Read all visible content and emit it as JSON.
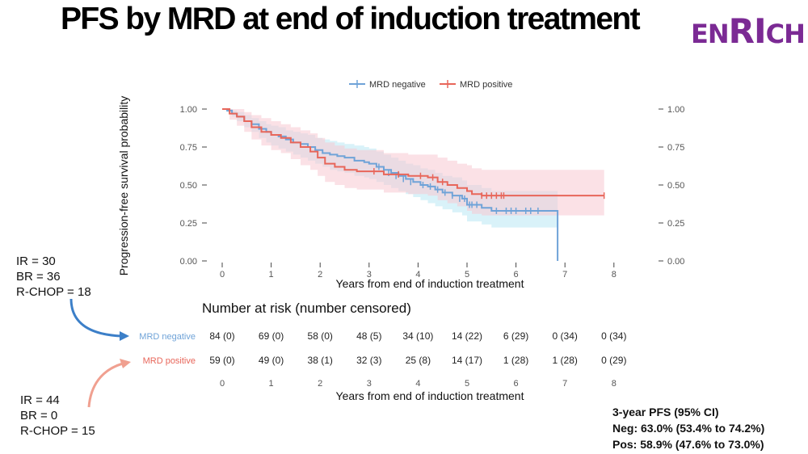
{
  "title": "PFS by MRD at end of induction treatment",
  "logo": {
    "prefix": "EN",
    "highlight": "RI",
    "suffix": "CH"
  },
  "colors": {
    "negative": "#6fa3d8",
    "positive": "#e8665a",
    "neg_band": "#c9ecf7",
    "pos_band": "#f7c9d2",
    "logo": "#7b2a94"
  },
  "chart_data": {
    "type": "line",
    "subtype": "kaplan-meier",
    "title": "",
    "xlabel": "Years from end of induction treatment",
    "ylabel": "Progression-free survival probability",
    "xlim": [
      0,
      8
    ],
    "ylim": [
      0,
      1
    ],
    "x_ticks": [
      "0",
      "1",
      "2",
      "3",
      "4",
      "5",
      "6",
      "7",
      "8"
    ],
    "y_ticks": [
      "0.00",
      "0.25",
      "0.50",
      "0.75",
      "1.00"
    ],
    "y_tick_values": [
      0,
      0.25,
      0.5,
      0.75,
      1.0
    ],
    "legend": [
      "MRD negative",
      "MRD positive"
    ],
    "legend_position": "top",
    "series": [
      {
        "name": "MRD negative",
        "x": [
          0,
          0.1,
          0.2,
          0.3,
          0.45,
          0.6,
          0.75,
          0.9,
          1.0,
          1.15,
          1.3,
          1.45,
          1.6,
          1.75,
          1.9,
          2.05,
          2.2,
          2.35,
          2.5,
          2.7,
          2.9,
          3.0,
          3.15,
          3.3,
          3.45,
          3.6,
          3.75,
          3.9,
          4.05,
          4.2,
          4.35,
          4.5,
          4.7,
          4.9,
          5.0,
          5.15,
          5.3,
          5.5,
          6.0,
          6.5,
          6.85,
          6.85
        ],
        "y": [
          1.0,
          0.99,
          0.97,
          0.95,
          0.92,
          0.9,
          0.87,
          0.85,
          0.83,
          0.82,
          0.8,
          0.78,
          0.77,
          0.75,
          0.73,
          0.71,
          0.7,
          0.69,
          0.68,
          0.66,
          0.65,
          0.64,
          0.62,
          0.6,
          0.58,
          0.56,
          0.54,
          0.52,
          0.5,
          0.49,
          0.47,
          0.45,
          0.43,
          0.41,
          0.37,
          0.37,
          0.35,
          0.33,
          0.33,
          0.33,
          0.33,
          0.0
        ],
        "ci_lower": [
          1.0,
          0.98,
          0.95,
          0.92,
          0.88,
          0.85,
          0.81,
          0.78,
          0.76,
          0.74,
          0.72,
          0.7,
          0.68,
          0.66,
          0.64,
          0.62,
          0.6,
          0.59,
          0.58,
          0.56,
          0.55,
          0.54,
          0.52,
          0.5,
          0.48,
          0.46,
          0.44,
          0.42,
          0.4,
          0.38,
          0.36,
          0.34,
          0.32,
          0.3,
          0.26,
          0.26,
          0.24,
          0.22,
          0.22,
          0.22,
          0.22,
          0.22
        ],
        "ci_upper": [
          1.0,
          1.0,
          0.99,
          0.98,
          0.96,
          0.94,
          0.92,
          0.9,
          0.89,
          0.88,
          0.86,
          0.85,
          0.84,
          0.83,
          0.81,
          0.8,
          0.79,
          0.78,
          0.77,
          0.76,
          0.75,
          0.74,
          0.72,
          0.7,
          0.68,
          0.66,
          0.64,
          0.63,
          0.61,
          0.6,
          0.58,
          0.56,
          0.55,
          0.53,
          0.5,
          0.5,
          0.48,
          0.46,
          0.46,
          0.46,
          0.46,
          0.46
        ],
        "censor_x": [
          3.2,
          3.4,
          3.55,
          3.7,
          3.85,
          4.1,
          4.25,
          4.4,
          4.55,
          4.7,
          4.85,
          4.95,
          5.05,
          5.1,
          5.2,
          5.6,
          5.8,
          5.9,
          6.0,
          6.2,
          6.3,
          6.45
        ],
        "censor_y": [
          0.62,
          0.58,
          0.56,
          0.54,
          0.52,
          0.5,
          0.49,
          0.47,
          0.45,
          0.43,
          0.41,
          0.41,
          0.37,
          0.37,
          0.37,
          0.33,
          0.33,
          0.33,
          0.33,
          0.33,
          0.33,
          0.33
        ]
      },
      {
        "name": "MRD positive",
        "x": [
          0,
          0.15,
          0.3,
          0.45,
          0.6,
          0.8,
          1.0,
          1.2,
          1.4,
          1.6,
          1.8,
          1.95,
          2.1,
          2.3,
          2.5,
          2.75,
          3.0,
          3.3,
          3.5,
          3.8,
          4.0,
          4.2,
          4.4,
          4.6,
          4.8,
          5.0,
          5.1,
          5.3,
          6.0,
          7.0,
          7.8
        ],
        "y": [
          1.0,
          0.97,
          0.95,
          0.92,
          0.88,
          0.85,
          0.83,
          0.81,
          0.78,
          0.75,
          0.72,
          0.68,
          0.64,
          0.62,
          0.6,
          0.59,
          0.59,
          0.57,
          0.57,
          0.56,
          0.56,
          0.55,
          0.52,
          0.5,
          0.48,
          0.46,
          0.44,
          0.43,
          0.43,
          0.43,
          0.43
        ],
        "ci_lower": [
          1.0,
          0.93,
          0.89,
          0.85,
          0.8,
          0.76,
          0.73,
          0.71,
          0.67,
          0.63,
          0.6,
          0.56,
          0.52,
          0.5,
          0.48,
          0.47,
          0.47,
          0.45,
          0.45,
          0.44,
          0.44,
          0.43,
          0.4,
          0.38,
          0.36,
          0.33,
          0.31,
          0.3,
          0.3,
          0.3,
          0.3
        ],
        "ci_upper": [
          1.0,
          1.0,
          1.0,
          0.98,
          0.96,
          0.94,
          0.92,
          0.9,
          0.88,
          0.86,
          0.84,
          0.81,
          0.78,
          0.76,
          0.74,
          0.73,
          0.73,
          0.71,
          0.71,
          0.7,
          0.7,
          0.7,
          0.68,
          0.66,
          0.64,
          0.63,
          0.61,
          0.6,
          0.6,
          0.6,
          0.6
        ],
        "censor_x": [
          3.1,
          3.6,
          4.05,
          4.3,
          4.5,
          5.3,
          5.4,
          5.5,
          5.6,
          5.7,
          5.75,
          7.8
        ],
        "censor_y": [
          0.59,
          0.57,
          0.56,
          0.55,
          0.52,
          0.43,
          0.43,
          0.43,
          0.43,
          0.43,
          0.43,
          0.43
        ]
      }
    ]
  },
  "risk_table": {
    "title": "Number at risk (number censored)",
    "xlabel": "Years from end of induction treatment",
    "x_ticks": [
      "0",
      "1",
      "2",
      "3",
      "4",
      "5",
      "6",
      "7",
      "8"
    ],
    "rows": [
      {
        "label": "MRD negative",
        "values": [
          "84 (0)",
          "69 (0)",
          "58 (0)",
          "48 (5)",
          "34 (10)",
          "14 (22)",
          "6 (29)",
          "0 (34)",
          "0 (34)"
        ]
      },
      {
        "label": "MRD positive",
        "values": [
          "59 (0)",
          "49 (0)",
          "38 (1)",
          "32 (3)",
          "25 (8)",
          "14 (17)",
          "1 (28)",
          "1 (28)",
          "0 (29)"
        ]
      }
    ]
  },
  "annotations": {
    "negative_group": [
      "IR = 30",
      "BR = 36",
      "R-CHOP = 18"
    ],
    "positive_group": [
      "IR = 44",
      "BR = 0",
      "R-CHOP = 15"
    ]
  },
  "pfs_summary": {
    "title": "3-year PFS (95% CI)",
    "neg": "Neg: 63.0% (53.4% to 74.2%)",
    "pos": "Pos: 58.9% (47.6% to 73.0%)"
  }
}
